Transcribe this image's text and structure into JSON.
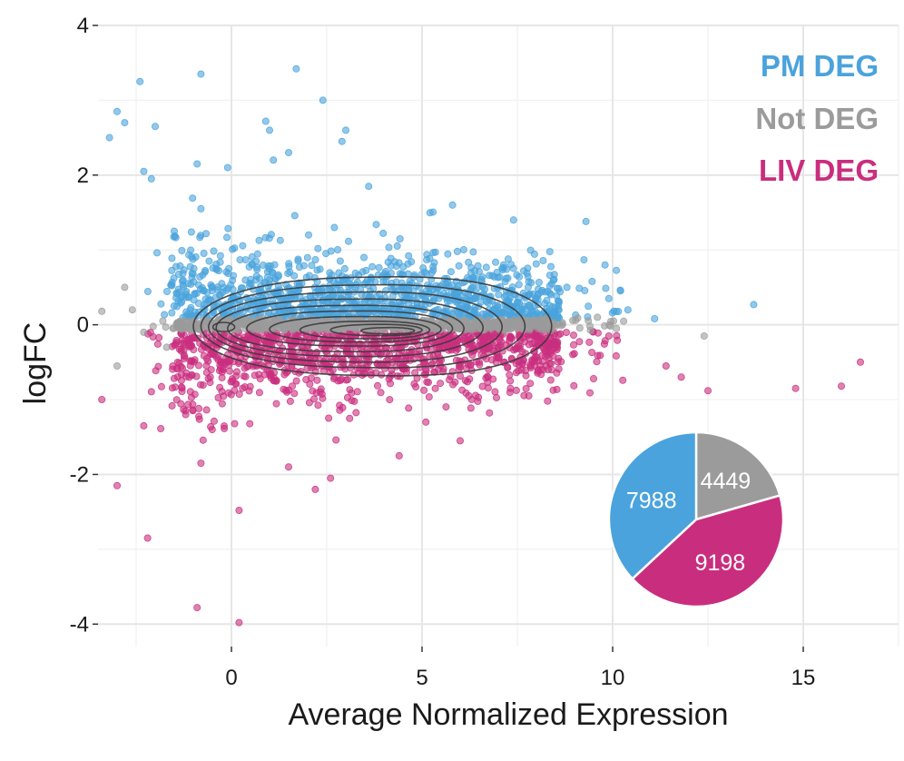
{
  "chart_data": {
    "type": "scatter",
    "title": "",
    "xlabel": "Average Normalized Expression",
    "ylabel": "logFC",
    "xlim": [
      -3.5,
      17.5
    ],
    "ylim": [
      -4.3,
      4.0
    ],
    "x_ticks": [
      0,
      5,
      10,
      15
    ],
    "y_ticks": [
      -4,
      -2,
      0,
      2,
      4
    ],
    "grid": true,
    "legend_position": "top-right",
    "series": [
      {
        "name": "PM DEG",
        "color": "#4aa3dc",
        "points": [
          [
            -2.4,
            3.25
          ],
          [
            -0.8,
            3.35
          ],
          [
            1.7,
            3.42
          ],
          [
            2.4,
            3.0
          ],
          [
            -3.0,
            2.85
          ],
          [
            -2.8,
            2.7
          ],
          [
            -3.2,
            2.5
          ],
          [
            -2.0,
            2.65
          ],
          [
            0.9,
            2.72
          ],
          [
            1.0,
            2.6
          ],
          [
            3.0,
            2.6
          ],
          [
            2.9,
            2.45
          ],
          [
            1.5,
            2.3
          ],
          [
            -2.3,
            2.05
          ],
          [
            -2.1,
            1.95
          ],
          [
            -0.9,
            2.15
          ],
          [
            -0.1,
            2.1
          ],
          [
            1.1,
            2.2
          ],
          [
            3.6,
            1.85
          ],
          [
            -0.8,
            1.55
          ],
          [
            5.8,
            1.6
          ],
          [
            7.4,
            1.4
          ],
          [
            9.3,
            1.38
          ],
          [
            13.7,
            0.27
          ],
          [
            10.4,
            0.2
          ],
          [
            11.1,
            0.08
          ],
          [
            8.8,
            0.5
          ],
          [
            9.8,
            0.8
          ],
          [
            -1.5,
            1.25
          ],
          [
            2.7,
            1.3
          ]
        ]
      },
      {
        "name": "Not DEG",
        "color": "#9b9b9b",
        "points": [
          [
            -2.8,
            0.5
          ],
          [
            -3.4,
            0.18
          ],
          [
            -2.6,
            0.2
          ],
          [
            -2.3,
            -0.1
          ],
          [
            -1.8,
            0.05
          ],
          [
            -1.7,
            -0.3
          ],
          [
            -3.0,
            -0.55
          ],
          [
            10.1,
            -0.05
          ],
          [
            12.4,
            -0.15
          ],
          [
            9.6,
            0.1
          ]
        ]
      },
      {
        "name": "LIV DEG",
        "color": "#c92e7e",
        "points": [
          [
            -0.9,
            -3.78
          ],
          [
            0.2,
            -3.98
          ],
          [
            -2.2,
            -2.85
          ],
          [
            0.2,
            -2.48
          ],
          [
            -3.0,
            -2.15
          ],
          [
            2.2,
            -2.2
          ],
          [
            2.6,
            -2.05
          ],
          [
            -0.8,
            -1.85
          ],
          [
            4.4,
            -1.75
          ],
          [
            6.0,
            -1.55
          ],
          [
            -3.4,
            -1.0
          ],
          [
            -2.3,
            -1.35
          ],
          [
            1.5,
            -1.9
          ],
          [
            11.8,
            -0.7
          ],
          [
            12.5,
            -0.88
          ],
          [
            14.8,
            -0.85
          ],
          [
            16.0,
            -0.82
          ],
          [
            16.5,
            -0.5
          ],
          [
            11.4,
            -0.55
          ],
          [
            9.5,
            -0.72
          ],
          [
            9.9,
            -0.15
          ],
          [
            -1.2,
            -1.2
          ],
          [
            3.1,
            -1.25
          ],
          [
            5.1,
            -1.3
          ],
          [
            7.8,
            -0.95
          ]
        ]
      }
    ],
    "density_contours": true,
    "inset_pie": {
      "slices": [
        {
          "name": "Not DEG",
          "value": 4449,
          "color": "#9b9b9b"
        },
        {
          "name": "LIV DEG",
          "value": 9198,
          "color": "#c92e7e"
        },
        {
          "name": "PM DEG",
          "value": 7988,
          "color": "#4aa3dc"
        }
      ]
    }
  }
}
